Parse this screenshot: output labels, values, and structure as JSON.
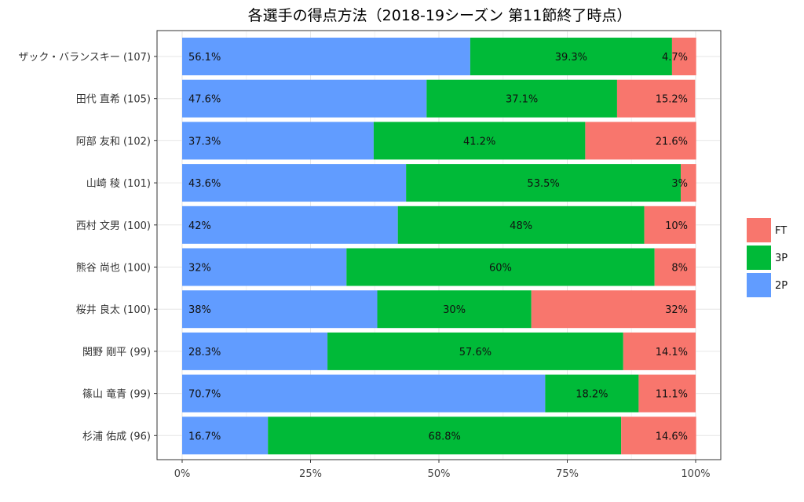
{
  "chart_data": {
    "type": "bar",
    "orientation": "horizontal",
    "stacked": true,
    "title": "各選手の得点方法（2018-19シーズン 第11節終了時点）",
    "xlabel": "",
    "ylabel": "",
    "xlim": [
      0,
      100
    ],
    "x_ticks": [
      "0%",
      "25%",
      "50%",
      "75%",
      "100%"
    ],
    "x_tick_values": [
      0,
      25,
      50,
      75,
      100
    ],
    "grid": true,
    "legend_position": "right",
    "categories": [
      "ザック・バランスキー (107)",
      "田代 直希 (105)",
      "阿部 友和 (102)",
      "山崎 稜 (101)",
      "西村 文男 (100)",
      "熊谷 尚也 (100)",
      "桜井 良太 (100)",
      "関野 剛平 (99)",
      "篠山 竜青 (99)",
      "杉浦 佑成 (96)"
    ],
    "series": [
      {
        "name": "2P",
        "color": "#619CFF",
        "values": [
          56.1,
          47.6,
          37.3,
          43.6,
          42,
          32,
          38,
          28.3,
          70.7,
          16.7
        ],
        "labels": [
          "56.1%",
          "47.6%",
          "37.3%",
          "43.6%",
          "42%",
          "32%",
          "38%",
          "28.3%",
          "70.7%",
          "16.7%"
        ]
      },
      {
        "name": "3P",
        "color": "#00BA38",
        "values": [
          39.3,
          37.1,
          41.2,
          53.5,
          48,
          60,
          30,
          57.6,
          18.2,
          68.8
        ],
        "labels": [
          "39.3%",
          "37.1%",
          "41.2%",
          "53.5%",
          "48%",
          "60%",
          "30%",
          "57.6%",
          "18.2%",
          "68.8%"
        ]
      },
      {
        "name": "FT",
        "color": "#F8766D",
        "values": [
          4.7,
          15.2,
          21.6,
          3,
          10,
          8,
          32,
          14.1,
          11.1,
          14.6
        ],
        "labels": [
          "4.7%",
          "15.2%",
          "21.6%",
          "3%",
          "10%",
          "8%",
          "32%",
          "14.1%",
          "11.1%",
          "14.6%"
        ]
      }
    ],
    "legend": {
      "items": [
        {
          "name": "FT",
          "color": "#F8766D"
        },
        {
          "name": "3P",
          "color": "#00BA38"
        },
        {
          "name": "2P",
          "color": "#619CFF"
        }
      ]
    }
  }
}
